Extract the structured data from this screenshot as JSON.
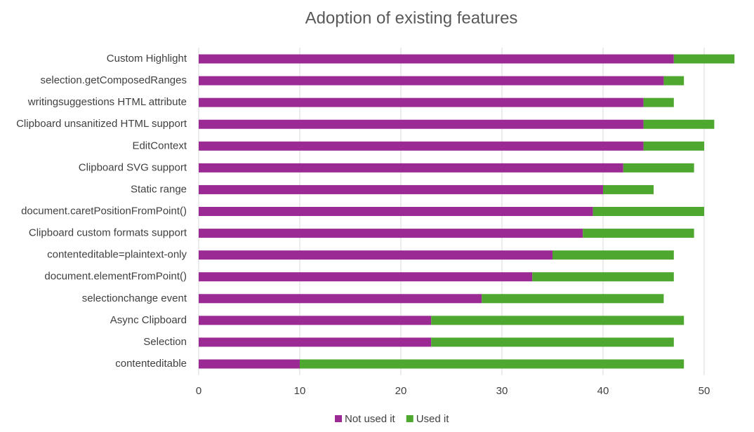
{
  "chart_data": {
    "type": "stacked-bar-horizontal",
    "title": "Adoption of existing features",
    "categories": [
      "Custom Highlight",
      "selection.getComposedRanges",
      "writingsuggestions HTML attribute",
      "Clipboard unsanitized HTML support",
      "EditContext",
      "Clipboard SVG support",
      "Static range",
      "document.caretPositionFromPoint()",
      "Clipboard custom formats support",
      "contenteditable=plaintext-only",
      "document.elementFromPoint()",
      "selectionchange event",
      "Async Clipboard",
      "Selection",
      "contenteditable"
    ],
    "series": [
      {
        "name": "Not used it",
        "color": "#9b2a95",
        "values": [
          47,
          46,
          44,
          44,
          44,
          42,
          40,
          39,
          38,
          35,
          33,
          28,
          23,
          23,
          10
        ]
      },
      {
        "name": "Used it",
        "color": "#4ea72e",
        "values": [
          6,
          2,
          3,
          7,
          6,
          7,
          5,
          11,
          11,
          12,
          14,
          18,
          25,
          24,
          38
        ]
      }
    ],
    "xlim": [
      0,
      54
    ],
    "xticks": [
      0,
      10,
      20,
      30,
      40,
      50
    ],
    "grid": true,
    "legend": "bottom"
  }
}
